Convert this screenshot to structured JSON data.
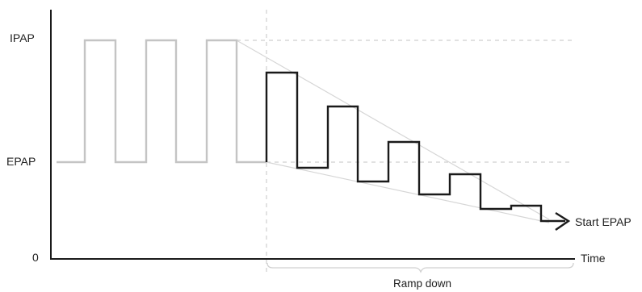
{
  "labels": {
    "ipap": "IPAP",
    "epap": "EPAP",
    "zero": "0",
    "time": "Time",
    "start_epap": "Start EPAP",
    "ramp_down": "Ramp down"
  },
  "colors": {
    "axis": "#1a1a1a",
    "pulse_before": "#c4c4c4",
    "pulse_ramp": "#1a1a1a",
    "guide_lines": "#d6d6d6",
    "dashed_guides": "#cfcfcf"
  }
}
